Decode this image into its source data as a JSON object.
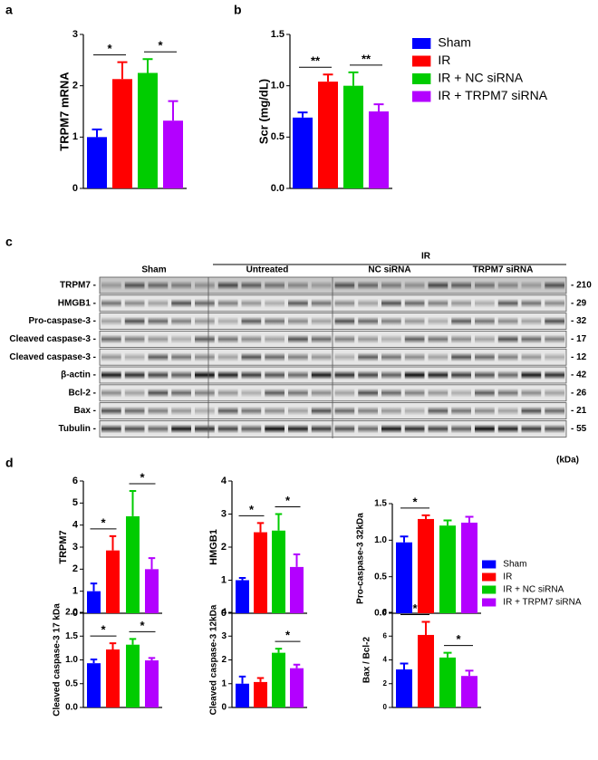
{
  "panel_labels": [
    "a",
    "b",
    "c",
    "d"
  ],
  "legend": [
    {
      "name": "Sham",
      "color": "#0000ff"
    },
    {
      "name": "IR",
      "color": "#ff0000"
    },
    {
      "name": "IR + NC siRNA",
      "color": "#00cc00"
    },
    {
      "name": "IR + TRPM7 siRNA",
      "color": "#b300ff"
    }
  ],
  "chart_data": [
    {
      "type": "bar",
      "ylabel": "TRPM7 mRNA",
      "values": [
        1.0,
        2.13,
        2.25,
        1.32
      ],
      "errors": [
        0.15,
        0.33,
        0.27,
        0.38
      ],
      "ylim": [
        0,
        3
      ],
      "yticks": [
        0,
        1,
        2,
        3
      ],
      "annotations": [
        {
          "label": "*",
          "between": [
            0,
            1
          ]
        },
        {
          "label": "*",
          "between": [
            2,
            3
          ]
        }
      ]
    },
    {
      "type": "bar",
      "ylabel": "Scr (mg/dL)",
      "values": [
        0.69,
        1.04,
        1.0,
        0.75
      ],
      "errors": [
        0.05,
        0.07,
        0.13,
        0.07
      ],
      "ylim": [
        0,
        1.5
      ],
      "yticks": [
        {
          "value": 0,
          "label": "0.0"
        },
        {
          "value": 0.5,
          "label": "0.5"
        },
        {
          "value": 1,
          "label": "1.0"
        },
        1.5
      ],
      "annotations": [
        {
          "label": "**",
          "between": [
            0,
            1
          ]
        },
        {
          "label": "**",
          "between": [
            2,
            3
          ]
        }
      ]
    },
    {
      "type": "bar",
      "ylabel": "TRPM7",
      "values": [
        1.0,
        2.85,
        4.4,
        2.0
      ],
      "errors": [
        0.35,
        0.65,
        1.15,
        0.5
      ],
      "ylim": [
        0,
        6
      ],
      "yticks": [
        0,
        1,
        2,
        3,
        4,
        5,
        6
      ],
      "annotations": [
        {
          "label": "*",
          "between": [
            0,
            1
          ]
        },
        {
          "label": "*",
          "between": [
            2,
            3
          ]
        }
      ]
    },
    {
      "type": "bar",
      "ylabel": "HMGB1",
      "values": [
        1.0,
        2.45,
        2.5,
        1.4
      ],
      "errors": [
        0.07,
        0.28,
        0.5,
        0.38
      ],
      "ylim": [
        0,
        4
      ],
      "yticks": [
        0,
        1,
        2,
        3,
        4
      ],
      "annotations": [
        {
          "label": "*",
          "between": [
            0,
            1
          ]
        },
        {
          "label": "*",
          "between": [
            2,
            3
          ]
        }
      ]
    },
    {
      "type": "bar",
      "ylabel": "Pro-caspase-3 32kDa",
      "values": [
        0.97,
        1.29,
        1.2,
        1.24
      ],
      "errors": [
        0.08,
        0.05,
        0.07,
        0.08
      ],
      "ylim": [
        0,
        1.5
      ],
      "yticks": [
        {
          "value": 0,
          "label": "0.0"
        },
        {
          "value": 0.5,
          "label": "0.5"
        },
        {
          "value": 1,
          "label": "1.0"
        },
        1.5
      ],
      "annotations": [
        {
          "label": "*",
          "between": [
            0,
            1
          ]
        }
      ]
    },
    {
      "type": "bar",
      "ylabel": "Cleaved caspase-3 17 kDa",
      "values": [
        0.93,
        1.22,
        1.32,
        0.99
      ],
      "errors": [
        0.08,
        0.13,
        0.12,
        0.05
      ],
      "ylim": [
        0,
        2
      ],
      "yticks": [
        {
          "value": 0,
          "label": "0.0"
        },
        0.5,
        {
          "value": 1,
          "label": "1.0"
        },
        1.5,
        {
          "value": 2,
          "label": "2.0"
        }
      ],
      "annotations": [
        {
          "label": "*",
          "between": [
            0,
            1
          ]
        },
        {
          "label": "*",
          "between": [
            2,
            3
          ]
        }
      ]
    },
    {
      "type": "bar",
      "ylabel": "Cleaved caspase-3 12kDa",
      "values": [
        1.0,
        1.07,
        2.3,
        1.65
      ],
      "errors": [
        0.3,
        0.17,
        0.17,
        0.15
      ],
      "ylim": [
        0,
        4
      ],
      "yticks": [
        0,
        1,
        2,
        3,
        4
      ],
      "annotations": [
        {
          "label": "*",
          "between": [
            2,
            3
          ]
        }
      ]
    },
    {
      "type": "bar",
      "ylabel": "Bax / Bcl-2",
      "values": [
        3.2,
        6.1,
        4.2,
        2.65
      ],
      "errors": [
        0.5,
        1.1,
        0.4,
        0.45
      ],
      "ylim": [
        0,
        8
      ],
      "yticks": [
        0,
        2,
        4,
        6,
        8
      ],
      "annotations": [
        {
          "label": "*",
          "between": [
            0,
            1
          ]
        },
        {
          "label": "*",
          "between": [
            2,
            3
          ]
        }
      ]
    }
  ],
  "blot": {
    "treatment": "IR",
    "groups": [
      "Sham",
      "Untreated",
      "NC siRNA",
      "TRPM7 siRNA"
    ],
    "unit": "(kDa)",
    "rows": [
      {
        "label": "TRPM7 -",
        "size": "- 210"
      },
      {
        "label": "HMGB1 -",
        "size": "- 29"
      },
      {
        "label": "Pro-caspase-3 -",
        "size": "- 32"
      },
      {
        "label": "Cleaved caspase-3 -",
        "size": "- 17"
      },
      {
        "label": "Cleaved caspase-3 -",
        "size": "- 12"
      },
      {
        "label": "β-actin -",
        "size": "- 42"
      },
      {
        "label": "Bcl-2 -",
        "size": "- 26"
      },
      {
        "label": "Bax -",
        "size": "- 21"
      },
      {
        "label": "Tubulin -",
        "size": "- 55"
      }
    ]
  }
}
